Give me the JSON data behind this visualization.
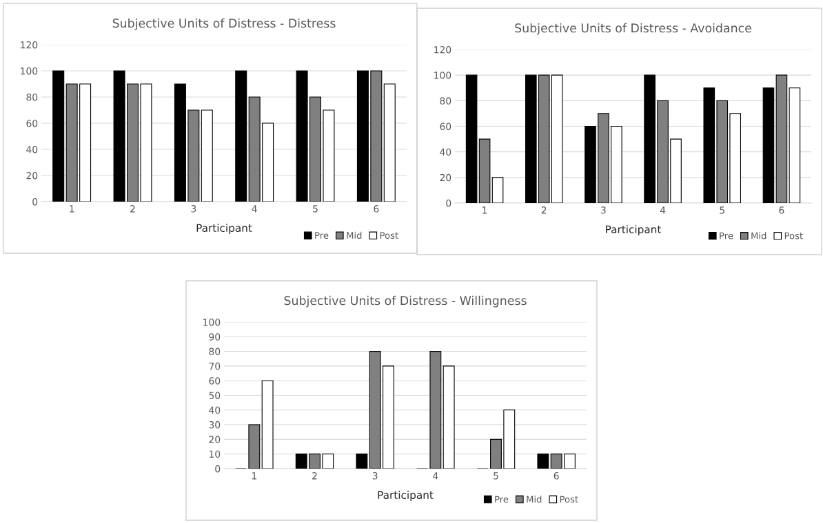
{
  "chart_data": [
    {
      "type": "bar",
      "title": "Subjective Units of Distress - Distress",
      "xlabel": "Participant",
      "categories": [
        "1",
        "2",
        "3",
        "4",
        "5",
        "6"
      ],
      "ylim": [
        0,
        120
      ],
      "yticks": [
        0,
        20,
        40,
        60,
        80,
        100,
        120
      ],
      "grid": "y",
      "legend": "bottom right",
      "series": [
        {
          "name": "Pre",
          "color": "#000000",
          "values": [
            100,
            100,
            90,
            100,
            100,
            100
          ]
        },
        {
          "name": "Mid",
          "color": "#808080",
          "values": [
            90,
            90,
            70,
            80,
            80,
            100
          ]
        },
        {
          "name": "Post",
          "color": "#ffffff",
          "values": [
            90,
            90,
            70,
            60,
            70,
            90
          ]
        }
      ]
    },
    {
      "type": "bar",
      "title": "Subjective Units of Distress - Avoidance",
      "xlabel": "Participant",
      "categories": [
        "1",
        "2",
        "3",
        "4",
        "5",
        "6"
      ],
      "ylim": [
        0,
        120
      ],
      "yticks": [
        0,
        20,
        40,
        60,
        80,
        100,
        120
      ],
      "grid": "y",
      "legend": "bottom right",
      "series": [
        {
          "name": "Pre",
          "color": "#000000",
          "values": [
            100,
            100,
            60,
            100,
            90,
            90
          ]
        },
        {
          "name": "Mid",
          "color": "#808080",
          "values": [
            50,
            100,
            70,
            80,
            80,
            100
          ]
        },
        {
          "name": "Post",
          "color": "#ffffff",
          "values": [
            20,
            100,
            60,
            50,
            70,
            90
          ]
        }
      ]
    },
    {
      "type": "bar",
      "title": "Subjective Units of Distress - Willingness",
      "xlabel": "Participant",
      "categories": [
        "1",
        "2",
        "3",
        "4",
        "5",
        "6"
      ],
      "ylim": [
        0,
        100
      ],
      "yticks": [
        0,
        10,
        20,
        30,
        40,
        50,
        60,
        70,
        80,
        90,
        100
      ],
      "grid": "y",
      "legend": "bottom right",
      "series": [
        {
          "name": "Pre",
          "color": "#000000",
          "values": [
            0,
            10,
            10,
            0,
            0,
            10
          ]
        },
        {
          "name": "Mid",
          "color": "#808080",
          "values": [
            30,
            10,
            80,
            80,
            20,
            10
          ]
        },
        {
          "name": "Post",
          "color": "#ffffff",
          "values": [
            60,
            10,
            70,
            70,
            40,
            10
          ]
        }
      ]
    }
  ]
}
